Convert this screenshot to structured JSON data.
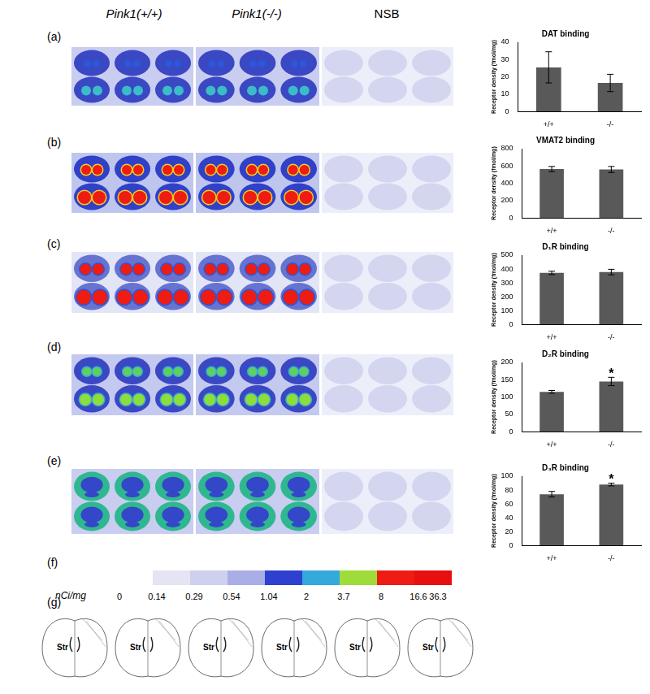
{
  "figure": {
    "column_headers": [
      "Pink1(+/+)",
      "Pink1(-/-)",
      "NSB"
    ],
    "panel_labels": [
      "(a)",
      "(b)",
      "(c)",
      "(d)",
      "(e)",
      "(f)",
      "(g)"
    ]
  },
  "color_scale": {
    "unit": "nCi/mg",
    "ticks": [
      0,
      0.14,
      0.29,
      0.54,
      1.04,
      2,
      3.7,
      8,
      16.6,
      36.3
    ],
    "colors": [
      "#ffffff",
      "#e4e4f4",
      "#cfcfee",
      "#a9aee6",
      "#2f3fd0",
      "#34a9dc",
      "#9fdc3a",
      "#ee1c12",
      "#e80f0f"
    ]
  },
  "atlas_labels": [
    "Str",
    "Str",
    "Str",
    "Str",
    "Str",
    "Str"
  ],
  "chart_data": [
    {
      "type": "bar",
      "title": "DAT binding",
      "y_label": "Receptor density (fmol/mg)",
      "categories": [
        "+/+",
        "-/-"
      ],
      "values": [
        25.5,
        16.5
      ],
      "errors": [
        9,
        5
      ],
      "color": "#595959",
      "ylim": [
        0,
        40
      ],
      "yticks": [
        0,
        10,
        20,
        30,
        40
      ],
      "grid": false
    },
    {
      "type": "bar",
      "title": "VMAT2 binding",
      "y_label": "Receptor density (fmol/mg)",
      "categories": [
        "+/+",
        "-/-"
      ],
      "values": [
        565,
        560
      ],
      "errors": [
        30,
        35
      ],
      "color": "#595959",
      "ylim": [
        0,
        800
      ],
      "yticks": [
        0,
        200,
        400,
        600,
        800
      ],
      "grid": false
    },
    {
      "type": "bar",
      "title": "D₁R binding",
      "y_label": "Receptor density (fmol/mg)",
      "categories": [
        "+/+",
        "-/-"
      ],
      "values": [
        372,
        378
      ],
      "errors": [
        12,
        20
      ],
      "color": "#595959",
      "ylim": [
        0,
        500
      ],
      "yticks": [
        0,
        100,
        200,
        300,
        400,
        500
      ],
      "grid": false
    },
    {
      "type": "bar",
      "title": "D₂R binding",
      "y_label": "Receptor density (fmol/mg)",
      "categories": [
        "+/+",
        "-/-"
      ],
      "values": [
        115,
        145
      ],
      "errors": [
        4,
        12
      ],
      "color": "#595959",
      "ylim": [
        0,
        200
      ],
      "yticks": [
        0,
        50,
        100,
        150,
        200
      ],
      "grid": false,
      "annotations": [
        {
          "category": "-/-",
          "text": "*"
        }
      ]
    },
    {
      "type": "bar",
      "title": "D₃R binding",
      "y_label": "Receptor density (fmol/mg)",
      "categories": [
        "+/+",
        "-/-"
      ],
      "values": [
        74,
        88
      ],
      "errors": [
        4,
        2
      ],
      "color": "#595959",
      "ylim": [
        0,
        100
      ],
      "yticks": [
        0,
        20,
        40,
        60,
        80,
        100
      ],
      "grid": false,
      "annotations": [
        {
          "category": "-/-",
          "text": "*"
        }
      ]
    }
  ]
}
